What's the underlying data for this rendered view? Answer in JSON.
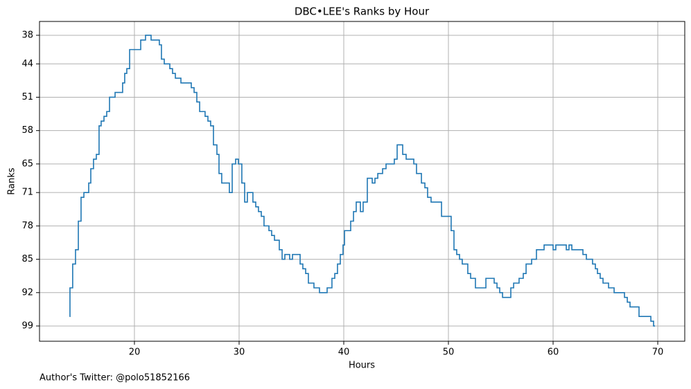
{
  "chart_data": {
    "type": "step",
    "title": "DBC•LEE's Ranks by Hour",
    "xlabel": "Hours",
    "ylabel": "Ranks",
    "annotation": "Author's Twitter: @polo51852166",
    "color": "#1f77b4",
    "grid": true,
    "xlim": [
      10.93,
      72.58
    ],
    "xticks": [
      20,
      30,
      40,
      50,
      60,
      70
    ],
    "ylim": [
      102.2,
      35.1
    ],
    "yticks": [
      38,
      44,
      51,
      58,
      65,
      71,
      78,
      85,
      92,
      99
    ],
    "x": [
      13.8,
      13.84,
      14.1,
      14.37,
      14.64,
      14.9,
      15.17,
      15.63,
      15.83,
      16.09,
      16.36,
      16.62,
      16.82,
      17.09,
      17.35,
      17.62,
      18.15,
      18.87,
      19.07,
      19.27,
      19.54,
      20.6,
      21.06,
      21.59,
      22.38,
      22.58,
      22.85,
      23.38,
      23.64,
      23.91,
      24.44,
      25.43,
      25.7,
      25.96,
      26.23,
      26.75,
      27.02,
      27.28,
      27.55,
      27.88,
      28.08,
      28.34,
      29.07,
      29.34,
      29.67,
      29.93,
      30.26,
      30.53,
      30.79,
      31.32,
      31.59,
      31.85,
      32.12,
      32.38,
      32.85,
      33.11,
      33.38,
      33.84,
      34.11,
      34.37,
      34.83,
      35.1,
      35.83,
      36.09,
      36.36,
      36.62,
      37.15,
      37.68,
      38.41,
      38.87,
      39.14,
      39.4,
      39.67,
      39.93,
      40.07,
      40.66,
      40.93,
      41.19,
      41.59,
      41.85,
      42.25,
      42.72,
      42.98,
      43.25,
      43.71,
      44.04,
      44.83,
      45.1,
      45.63,
      45.96,
      46.69,
      46.95,
      47.42,
      47.75,
      48.01,
      48.34,
      49.34,
      50.26,
      50.53,
      50.79,
      51.06,
      51.32,
      51.85,
      52.12,
      52.58,
      53.58,
      54.37,
      54.64,
      54.9,
      55.17,
      55.96,
      56.23,
      56.75,
      57.15,
      57.42,
      57.95,
      58.41,
      59.14,
      60.0,
      60.26,
      61.26,
      61.52,
      61.79,
      62.85,
      63.18,
      63.77,
      64.04,
      64.24,
      64.5,
      64.77,
      65.3,
      65.83,
      66.82,
      67.09,
      67.35,
      68.21,
      69.34,
      69.6,
      69.74
    ],
    "values": [
      97,
      91,
      86,
      83,
      77,
      72,
      71,
      69,
      66,
      64,
      63,
      57,
      56,
      55,
      54,
      51,
      50,
      48,
      46,
      45,
      41,
      39,
      38,
      39,
      40,
      43,
      44,
      45,
      46,
      47,
      48,
      49,
      50,
      52,
      54,
      55,
      56,
      57,
      61,
      63,
      67,
      69,
      71,
      65,
      64,
      65,
      69,
      73,
      71,
      73,
      74,
      75,
      76,
      78,
      79,
      80,
      81,
      83,
      85,
      84,
      85,
      84,
      86,
      87,
      88,
      90,
      91,
      92,
      91,
      89,
      88,
      86,
      84,
      82,
      79,
      77,
      75,
      73,
      75,
      73,
      68,
      69,
      68,
      67,
      66,
      65,
      64,
      61,
      63,
      64,
      65,
      67,
      69,
      70,
      72,
      73,
      76,
      79,
      83,
      84,
      85,
      86,
      88,
      89,
      91,
      89,
      90,
      91,
      92,
      93,
      91,
      90,
      89,
      88,
      86,
      85,
      83,
      82,
      83,
      82,
      83,
      82,
      83,
      84,
      85,
      86,
      87,
      88,
      89,
      90,
      91,
      92,
      93,
      94,
      95,
      97,
      98,
      99,
      99
    ]
  }
}
